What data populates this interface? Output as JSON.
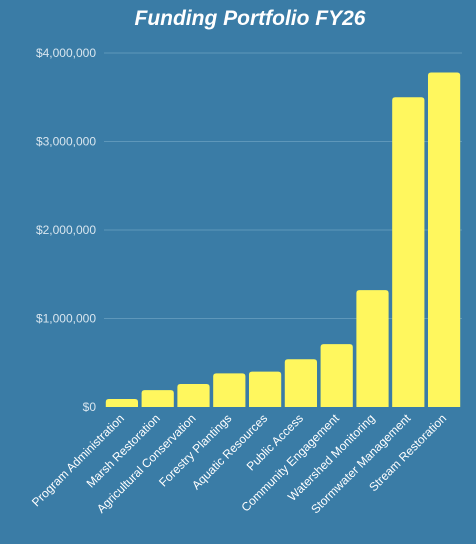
{
  "chart_data": {
    "type": "bar",
    "title": "Funding Portfolio FY26",
    "xlabel": "",
    "ylabel": "",
    "ylim": [
      0,
      4000000
    ],
    "yticks": [
      0,
      1000000,
      2000000,
      3000000,
      4000000
    ],
    "ytick_labels": [
      "$0",
      "$1,000,000",
      "$2,000,000",
      "$3,000,000",
      "$4,000,000"
    ],
    "grid": true,
    "categories": [
      "Program Administration",
      "Marsh Restoration",
      "Agricultural Conservation",
      "Forestry Plantings",
      "Aquatic Resources",
      "Public Access",
      "Community Engagement",
      "Watershed Monitoring",
      "Stormwater Management",
      "Stream Restoration"
    ],
    "values": [
      90000,
      190000,
      260000,
      380000,
      400000,
      540000,
      710000,
      1320000,
      3500000,
      3780000
    ],
    "colors": {
      "background": "#3a7ca6",
      "bar": "#fff75e",
      "grid": "#5e97ba",
      "text": "#ffffff"
    }
  }
}
